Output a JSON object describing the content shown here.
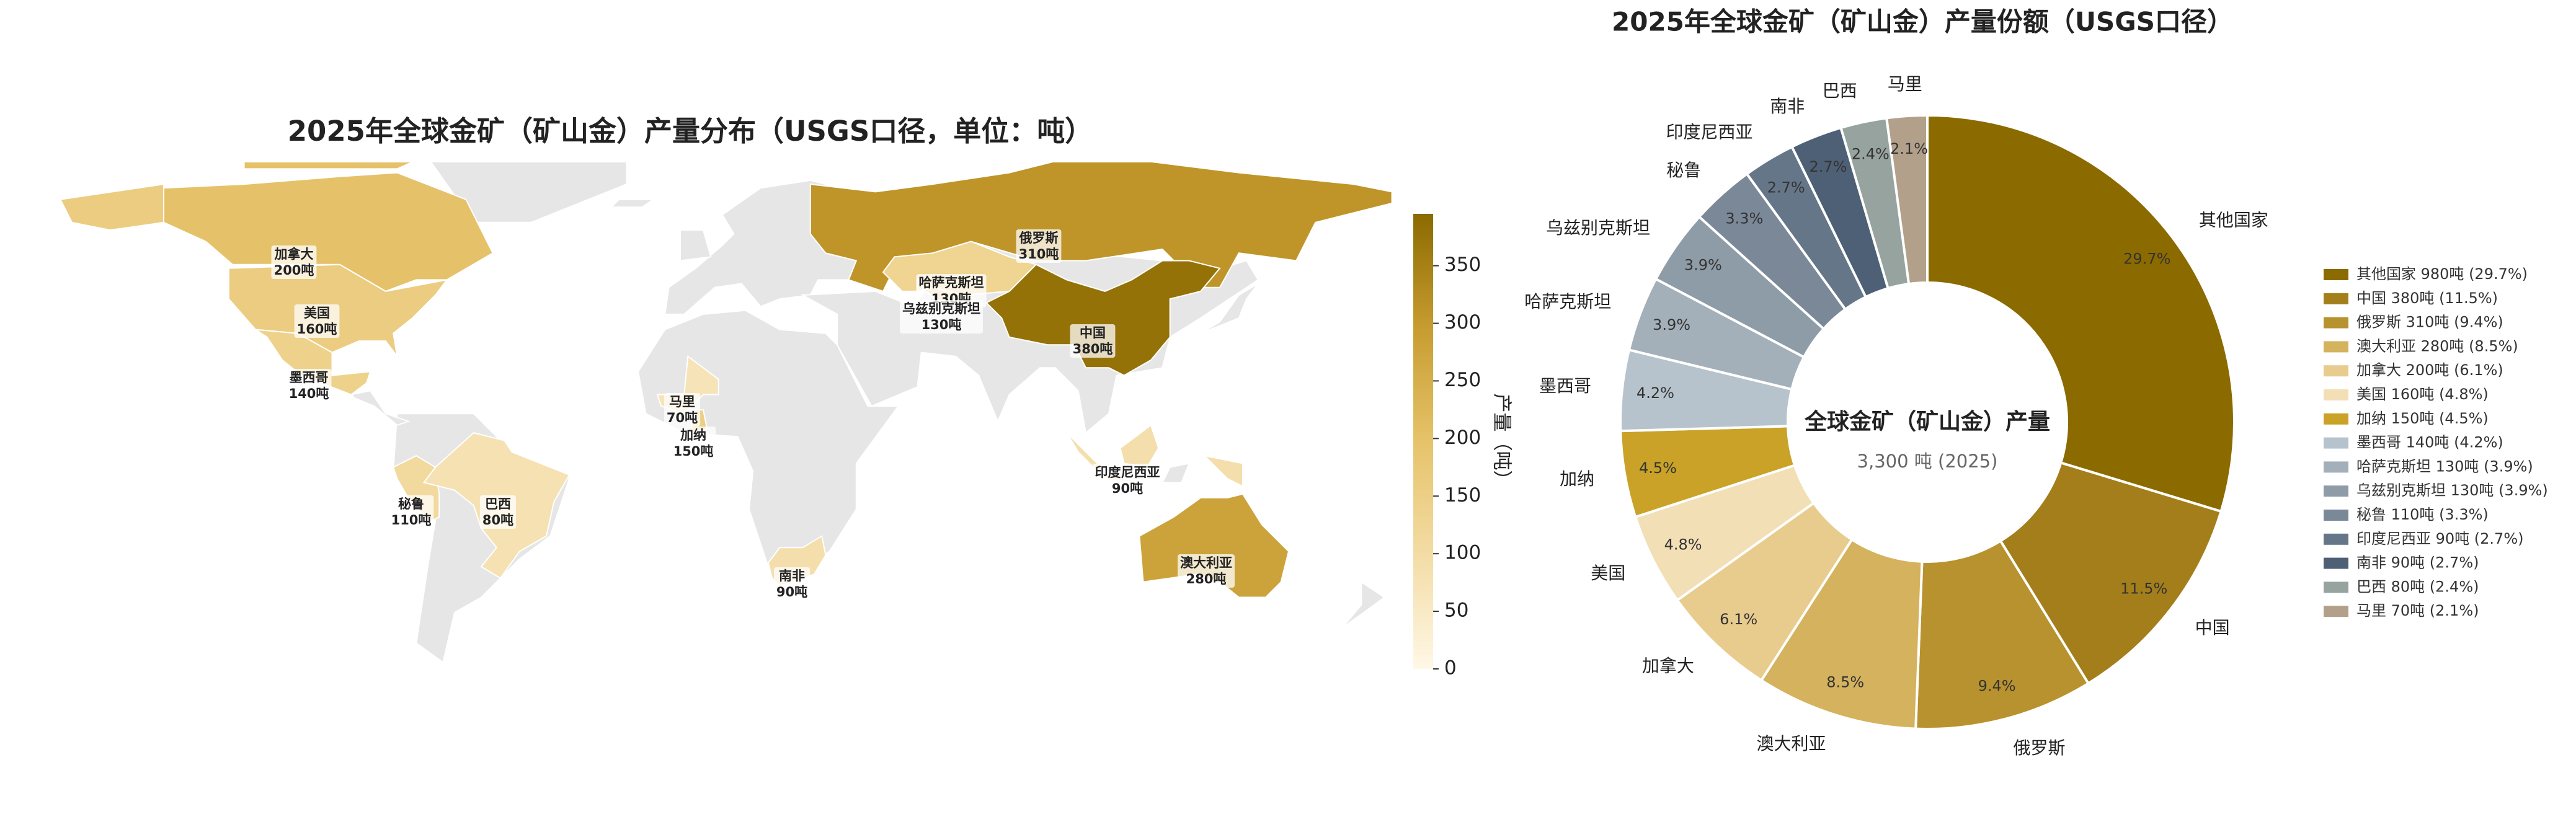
{
  "chart_data": [
    {
      "type": "map",
      "title": "2025年全球金矿（矿山金）产量分布（USGS口径，单位：吨）",
      "colorbar_label": "产量（吨）",
      "categories": [
        "加拿大",
        "美国",
        "墨西哥",
        "秘鲁",
        "巴西",
        "马里",
        "加纳",
        "南非",
        "俄罗斯",
        "哈萨克斯坦",
        "乌兹别克斯坦",
        "中国",
        "印度尼西亚",
        "澳大利亚"
      ],
      "values": [
        200,
        160,
        140,
        110,
        80,
        70,
        150,
        90,
        310,
        130,
        130,
        380,
        90,
        280
      ],
      "value_labels": [
        "200吨",
        "160吨",
        "140吨",
        "110吨",
        "80吨",
        "70吨",
        "150吨",
        "90吨",
        "310吨",
        "130吨",
        "130吨",
        "380吨",
        "90吨",
        "280吨"
      ],
      "colorbar_lim": [
        0,
        395
      ],
      "colorbar_ticks": [
        0,
        50,
        100,
        150,
        200,
        250,
        300,
        350
      ],
      "colormap": [
        "#fff8e6",
        "#f3dca5",
        "#e6c36a",
        "#c79c30",
        "#8b6a00"
      ]
    },
    {
      "type": "pie",
      "title": "2025年全球金矿（矿山金）产量份额（USGS口径）",
      "center_title": "全球金矿（矿山金）产量",
      "center_subtitle": "3,300 吨 (2025)",
      "categories": [
        "其他国家",
        "中国",
        "俄罗斯",
        "澳大利亚",
        "加拿大",
        "美国",
        "加纳",
        "墨西哥",
        "哈萨克斯坦",
        "乌兹别克斯坦",
        "秘鲁",
        "印度尼西亚",
        "南非",
        "巴西",
        "马里"
      ],
      "values": [
        980,
        380,
        310,
        280,
        200,
        160,
        150,
        140,
        130,
        130,
        110,
        90,
        90,
        80,
        70
      ],
      "value_labels": [
        "29.7%",
        "11.5%",
        "9.4%",
        "8.5%",
        "6.1%",
        "4.8%",
        "4.5%",
        "4.2%",
        "3.9%",
        "3.9%",
        "3.3%",
        "2.7%",
        "2.7%",
        "2.4%",
        "2.1%"
      ],
      "legend_labels": [
        "其他国家 980吨 (29.7%)",
        "中国 380吨 (11.5%)",
        "俄罗斯 310吨 (9.4%)",
        "澳大利亚 280吨 (8.5%)",
        "加拿大 200吨 (6.1%)",
        "美国 160吨 (4.8%)",
        "加纳 150吨 (4.5%)",
        "墨西哥 140吨 (4.2%)",
        "哈萨克斯坦 130吨 (3.9%)",
        "乌兹别克斯坦 130吨 (3.9%)",
        "秘鲁 110吨 (3.3%)",
        "印度尼西亚 90吨 (2.7%)",
        "南非 90吨 (2.7%)",
        "巴西 80吨 (2.4%)",
        "马里 70吨 (2.1%)"
      ],
      "colors": [
        "#8b6a00",
        "#a37e1a",
        "#b8922e",
        "#d4b25e",
        "#e8cc8e",
        "#f2dfb6",
        "#c9a227",
        "#b7c3cc",
        "#a3b0ba",
        "#8e9ca8",
        "#7a8898",
        "#667689",
        "#4e6075",
        "#97a39e",
        "#b3a08a"
      ]
    }
  ]
}
